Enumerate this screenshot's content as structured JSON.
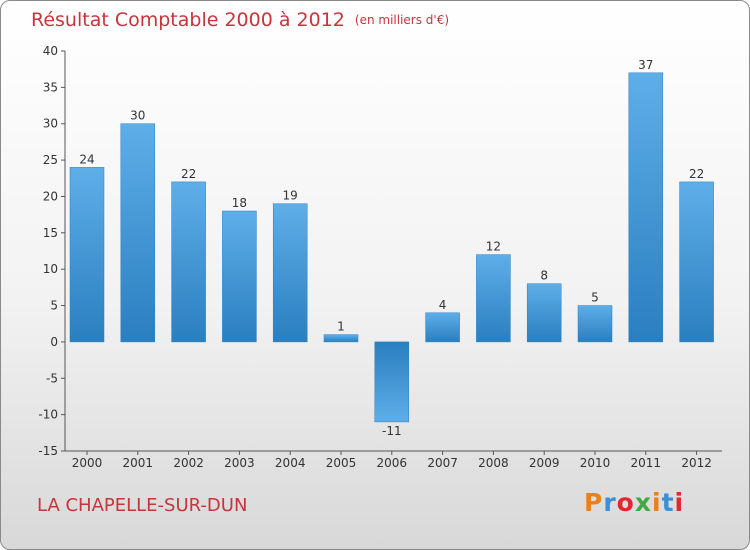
{
  "title": "Résultat Comptable 2000 à 2012",
  "unit": "(en milliers d'€)",
  "place": "LA CHAPELLE-SUR-DUN",
  "logo": {
    "text": "Proxiti",
    "colors": [
      "#e8811c",
      "#3a8fd6",
      "#e3262f",
      "#41a843",
      "#e8811c",
      "#3a8fd6",
      "#e3262f"
    ]
  },
  "colors": {
    "bar_light": "#5eaee8",
    "bar_dark": "#2a7fbf",
    "title": "#c8343b"
  },
  "chart_data": {
    "type": "bar",
    "title": "Résultat Comptable 2000 à 2012",
    "ylabel": "(en milliers d'€)",
    "xlabel": "",
    "categories": [
      "2000",
      "2001",
      "2002",
      "2003",
      "2004",
      "2005",
      "2006",
      "2007",
      "2008",
      "2009",
      "2010",
      "2011",
      "2012"
    ],
    "values": [
      24,
      30,
      22,
      18,
      19,
      1,
      -11,
      4,
      12,
      8,
      5,
      37,
      22
    ],
    "value_labels": [
      "24",
      "30",
      "22",
      "18",
      "19",
      "1",
      "-11",
      "4",
      "12",
      "8",
      "5",
      "37",
      "22"
    ],
    "ylim": [
      -15,
      40
    ],
    "yticks": [
      40,
      35,
      30,
      25,
      20,
      15,
      10,
      5,
      0,
      -5,
      -10,
      -15
    ],
    "grid": false
  }
}
